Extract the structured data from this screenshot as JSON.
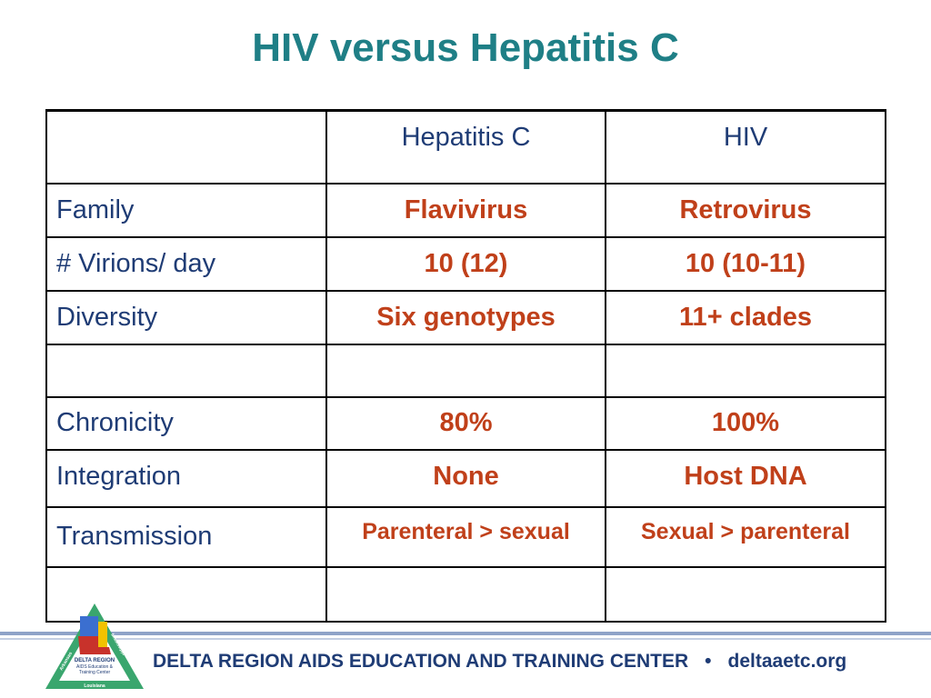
{
  "title": "HIV versus Hepatitis C",
  "table": {
    "headers": [
      "",
      "Hepatitis C",
      "HIV"
    ],
    "rows": [
      {
        "label": "Family",
        "hepc": "Flavivirus",
        "hiv": "Retrovirus"
      },
      {
        "label": "# Virions/ day",
        "hepc": "10 (12)",
        "hiv": "10 (10-11)"
      },
      {
        "label": "Diversity",
        "hepc": "Six genotypes",
        "hiv": "11+ clades"
      },
      {
        "label": "",
        "hepc": "",
        "hiv": ""
      },
      {
        "label": "Chronicity",
        "hepc": "80%",
        "hiv": "100%"
      },
      {
        "label": "Integration",
        "hepc": "None",
        "hiv": "Host DNA"
      },
      {
        "label": "Transmission",
        "hepc": "Parenteral > sexual",
        "hiv": "Sexual > parenteral"
      },
      {
        "label": "",
        "hepc": "",
        "hiv": ""
      }
    ]
  },
  "footer": {
    "org": "DELTA REGION AIDS EDUCATION AND TRAINING CENTER",
    "separator": "•",
    "site": "deltaaetc.org"
  },
  "logo": {
    "line1": "DELTA REGION",
    "line2": "AIDS Education &",
    "line3": "Training Center",
    "bottom": "Louisiana",
    "left_side": "Arkansas",
    "right_side": "Mississippi",
    "colors": {
      "triangle_outer": "#3aa66e",
      "triangle_inner": "#ffffff",
      "state_blue": "#3b6fd0",
      "state_yellow": "#f2c200",
      "state_red": "#c8322b"
    }
  }
}
